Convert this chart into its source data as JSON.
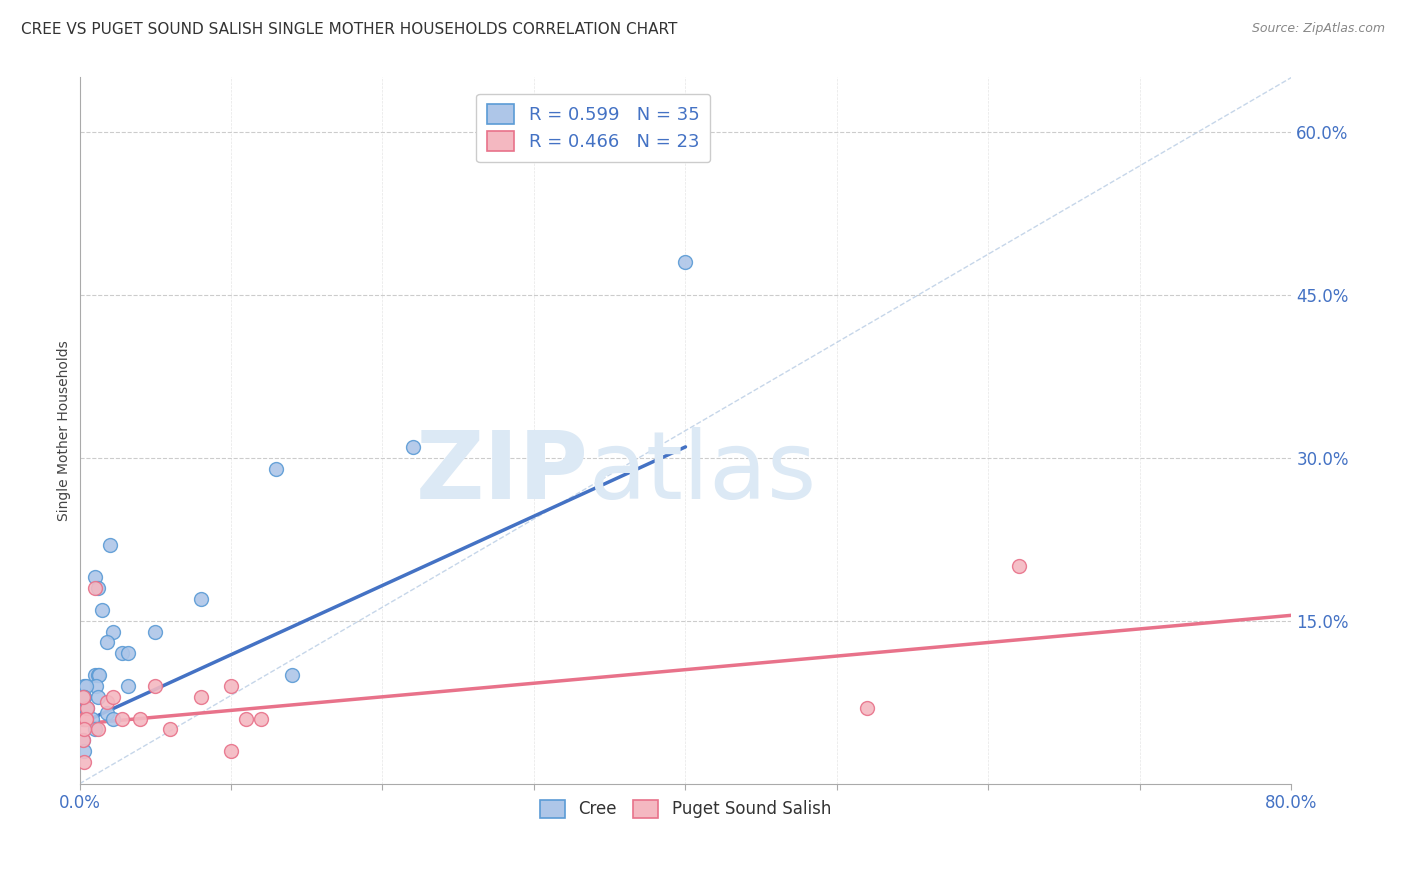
{
  "title": "CREE VS PUGET SOUND SALISH SINGLE MOTHER HOUSEHOLDS CORRELATION CHART",
  "source": "Source: ZipAtlas.com",
  "ylabel": "Single Mother Households",
  "xlim": [
    0.0,
    0.8
  ],
  "ylim": [
    0.0,
    0.65
  ],
  "yticks_right": [
    0.15,
    0.3,
    0.45,
    0.6
  ],
  "ytick_labels_right": [
    "15.0%",
    "30.0%",
    "45.0%",
    "60.0%"
  ],
  "grid_color": "#cccccc",
  "background_color": "#ffffff",
  "cree_color": "#aec6e8",
  "cree_edge_color": "#5b9bd5",
  "cree_line_color": "#4472c4",
  "puget_color": "#f4b8c1",
  "puget_edge_color": "#e8728a",
  "puget_line_color": "#e8728a",
  "diag_line_color": "#b8cce4",
  "legend_r_cree": "R = 0.599",
  "legend_n_cree": "N = 35",
  "legend_r_puget": "R = 0.466",
  "legend_n_puget": "N = 23",
  "cree_x": [
    0.02,
    0.01,
    0.012,
    0.015,
    0.022,
    0.018,
    0.028,
    0.032,
    0.01,
    0.012,
    0.013,
    0.011,
    0.003,
    0.004,
    0.002,
    0.003,
    0.005,
    0.004,
    0.003,
    0.002,
    0.008,
    0.018,
    0.022,
    0.032,
    0.05,
    0.08,
    0.13,
    0.14,
    0.003,
    0.01,
    0.002,
    0.003,
    0.012,
    0.22,
    0.4
  ],
  "cree_y": [
    0.22,
    0.19,
    0.18,
    0.16,
    0.14,
    0.13,
    0.12,
    0.12,
    0.1,
    0.1,
    0.1,
    0.09,
    0.09,
    0.09,
    0.08,
    0.08,
    0.07,
    0.07,
    0.06,
    0.06,
    0.06,
    0.065,
    0.06,
    0.09,
    0.14,
    0.17,
    0.29,
    0.1,
    0.08,
    0.05,
    0.04,
    0.03,
    0.08,
    0.31,
    0.48
  ],
  "puget_x": [
    0.01,
    0.012,
    0.018,
    0.022,
    0.028,
    0.04,
    0.05,
    0.06,
    0.08,
    0.1,
    0.11,
    0.12,
    0.003,
    0.004,
    0.002,
    0.003,
    0.005,
    0.004,
    0.003,
    0.002,
    0.52,
    0.62,
    0.1
  ],
  "puget_y": [
    0.18,
    0.05,
    0.075,
    0.08,
    0.06,
    0.06,
    0.09,
    0.05,
    0.08,
    0.03,
    0.06,
    0.06,
    0.06,
    0.06,
    0.04,
    0.02,
    0.07,
    0.06,
    0.05,
    0.08,
    0.07,
    0.2,
    0.09
  ],
  "cree_trendline_x": [
    0.0,
    0.4
  ],
  "cree_trendline_y": [
    0.055,
    0.31
  ],
  "puget_trendline_x": [
    0.0,
    0.8
  ],
  "puget_trendline_y": [
    0.055,
    0.155
  ],
  "watermark_zip": "ZIP",
  "watermark_atlas": "atlas",
  "watermark_color": "#dce9f5",
  "title_fontsize": 11,
  "source_fontsize": 9,
  "legend_fontsize": 13,
  "axis_tick_fontsize": 12
}
